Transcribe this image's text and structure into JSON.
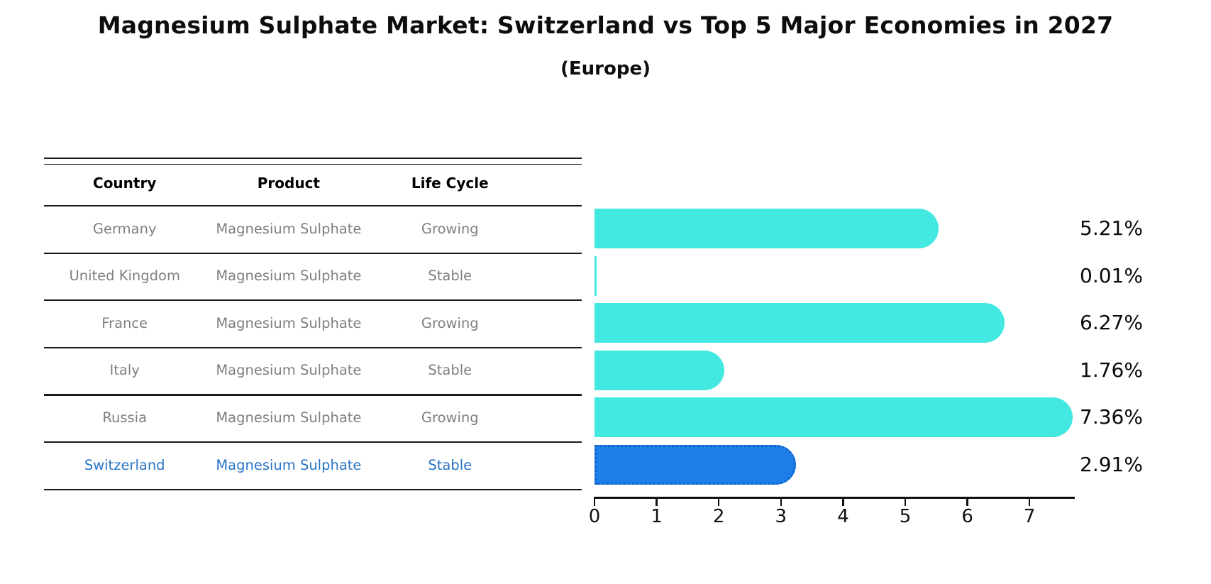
{
  "page": {
    "title": "Magnesium Sulphate Market: Switzerland vs Top 5 Major Economies in 2027",
    "subtitle": "(Europe)"
  },
  "table": {
    "headers": {
      "country": "Country",
      "product": "Product",
      "life_cycle": "Life Cycle"
    },
    "rows": [
      {
        "country": "Germany",
        "product": "Magnesium Sulphate",
        "life_cycle": "Growing",
        "highlight": false
      },
      {
        "country": "United Kingdom",
        "product": "Magnesium Sulphate",
        "life_cycle": "Stable",
        "highlight": false
      },
      {
        "country": "France",
        "product": "Magnesium Sulphate",
        "life_cycle": "Growing",
        "highlight": false
      },
      {
        "country": "Italy",
        "product": "Magnesium Sulphate",
        "life_cycle": "Stable",
        "highlight": false
      },
      {
        "country": "Russia",
        "product": "Magnesium Sulphate",
        "life_cycle": "Growing",
        "highlight": false
      },
      {
        "country": "Switzerland",
        "product": "Magnesium Sulphate",
        "life_cycle": "Stable",
        "highlight": true
      }
    ]
  },
  "chart_data": {
    "type": "bar",
    "orientation": "horizontal",
    "title": "Magnesium Sulphate Market: Switzerland vs Top 5 Major Economies in 2027 (Europe)",
    "categories": [
      "Germany",
      "United Kingdom",
      "France",
      "Italy",
      "Russia",
      "Switzerland"
    ],
    "values": [
      5.21,
      0.01,
      6.27,
      1.76,
      7.36,
      2.91
    ],
    "value_labels": [
      "5.21%",
      "0.01%",
      "6.27%",
      "1.76%",
      "7.36%",
      "2.91%"
    ],
    "x_ticks": [
      "0",
      "1",
      "2",
      "3",
      "4",
      "5",
      "6",
      "7"
    ],
    "xlim": [
      0,
      7.73
    ],
    "grid": false,
    "legend": false,
    "highlight_index": 5,
    "bar_color": "#43e8e0",
    "highlight_bar_color": "#1f7fe8",
    "highlight_border_color": "#0e62c8",
    "highlight_text_color": "#2874c6",
    "row_text_color": "#7f7f7f"
  }
}
